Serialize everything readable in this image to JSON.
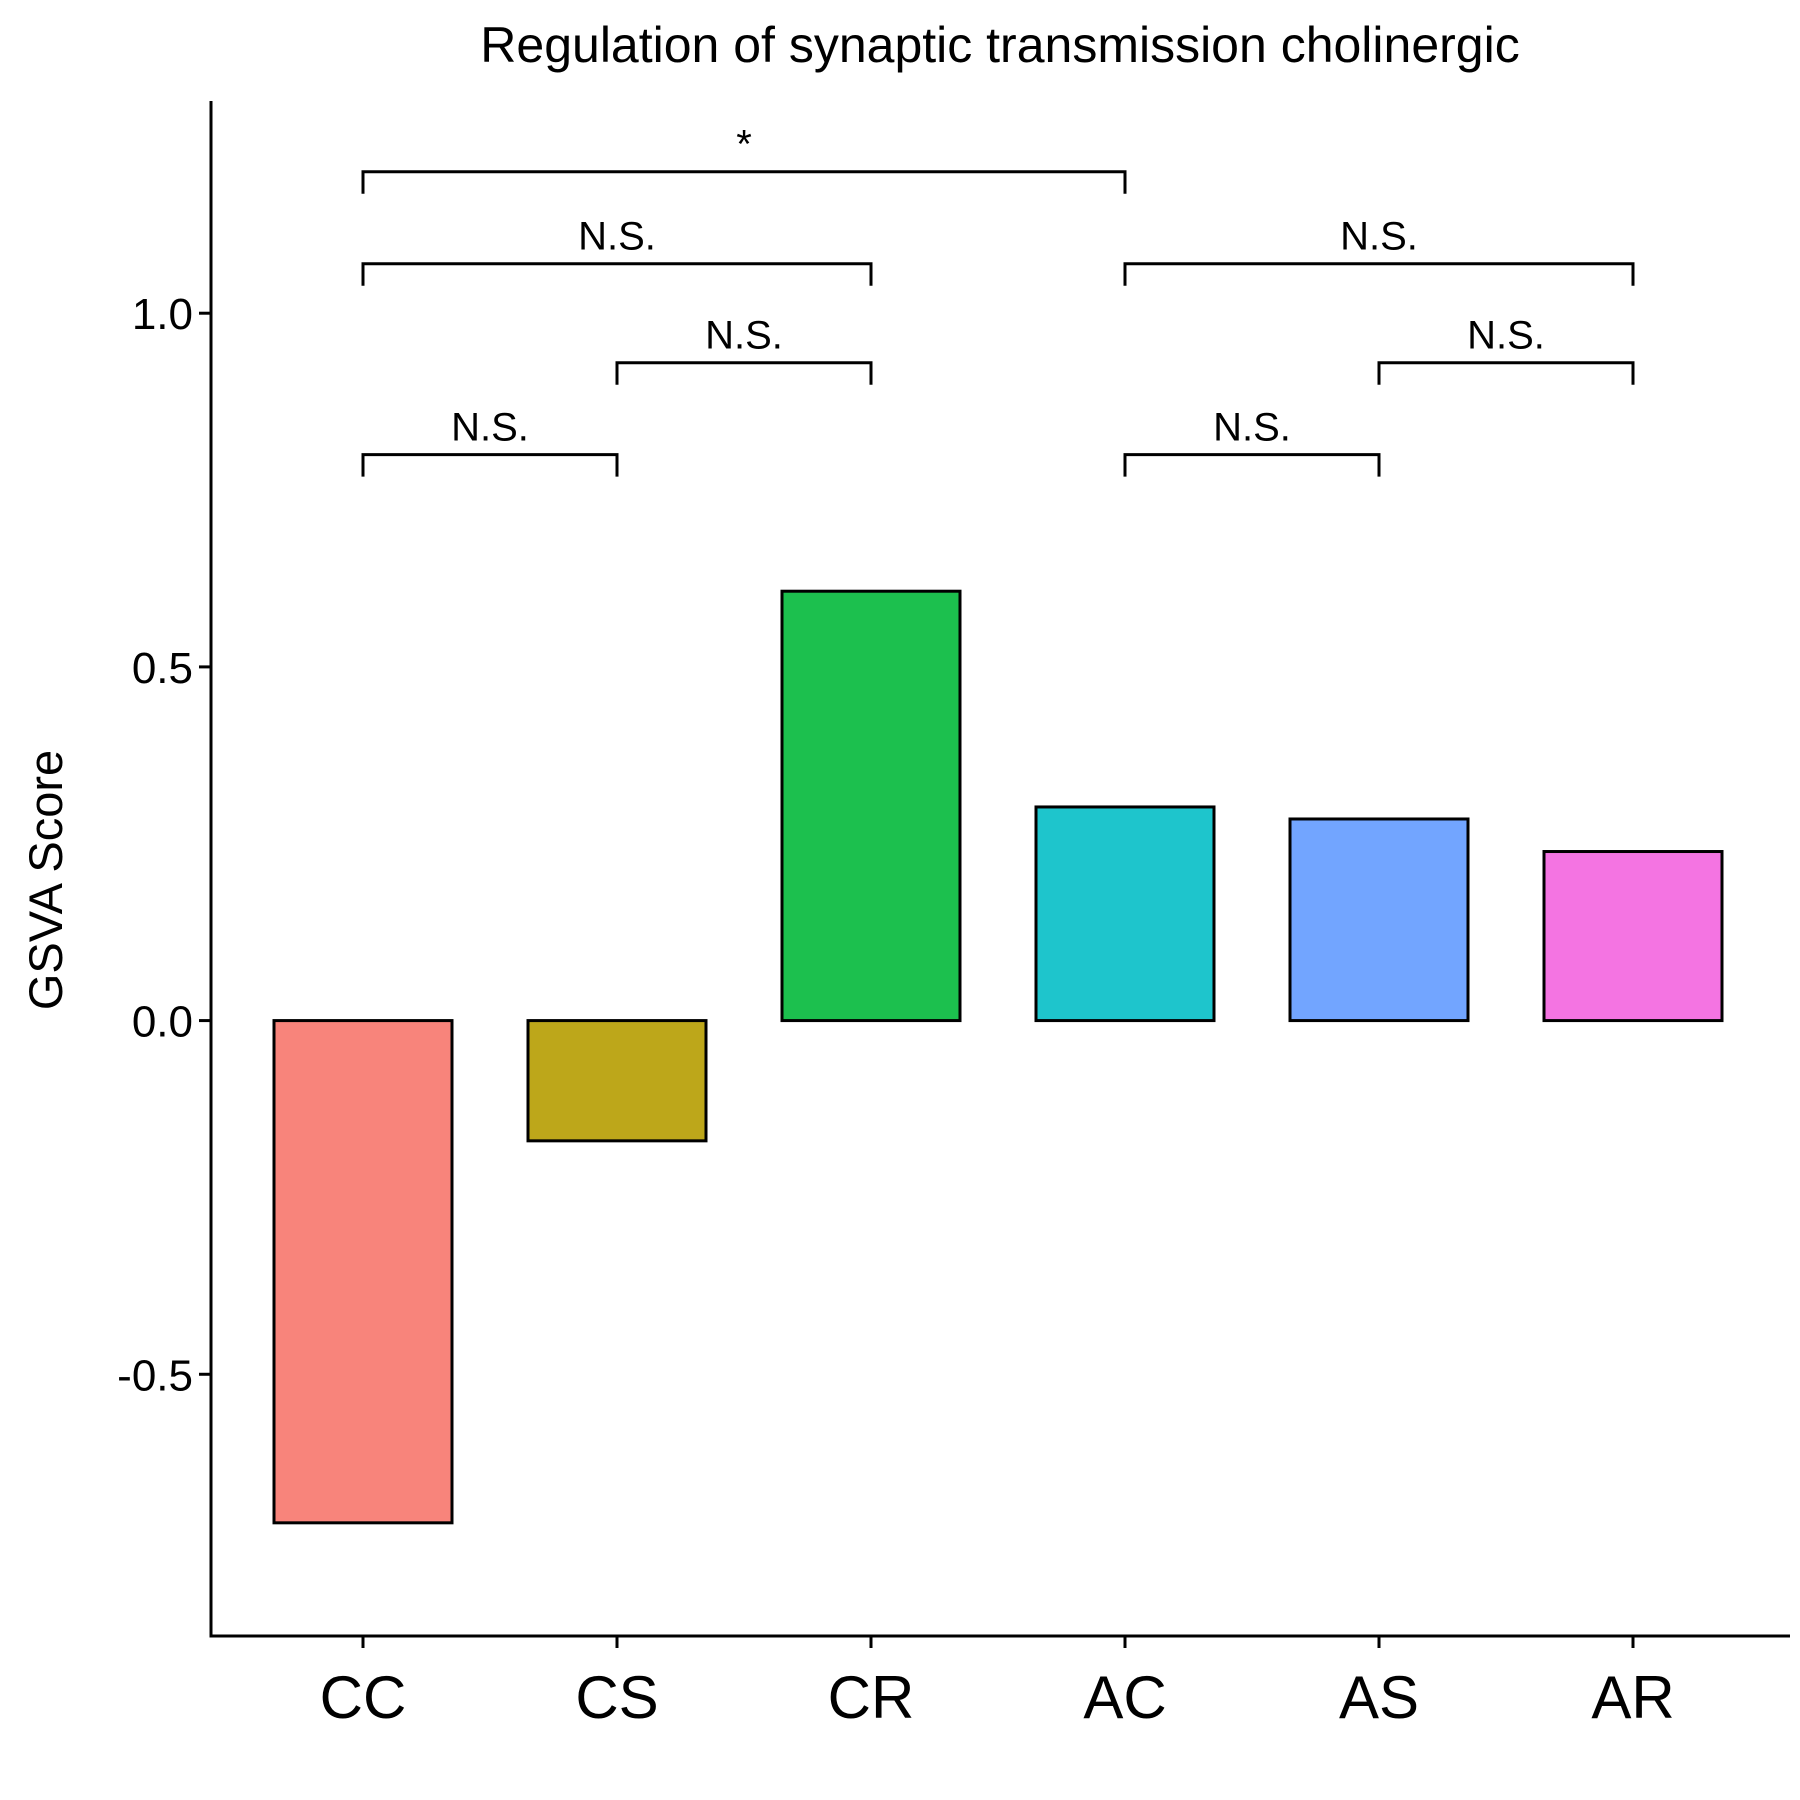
{
  "chart_data": {
    "type": "bar",
    "title": "Regulation of synaptic transmission cholinergic",
    "xlabel": "",
    "ylabel": "GSVA Score",
    "categories": [
      "CC",
      "CS",
      "CR",
      "AC",
      "AS",
      "AR"
    ],
    "values": [
      -0.71,
      -0.17,
      0.607,
      0.302,
      0.285,
      0.239
    ],
    "colors": [
      "#F8847B",
      "#BDA71A",
      "#1CC04E",
      "#1EC5CC",
      "#72A5FF",
      "#F474E2"
    ],
    "ylim": [
      -0.87,
      1.3
    ],
    "yticks": [
      {
        "value": -0.5,
        "label": "-0.5"
      },
      {
        "value": 0.0,
        "label": "0.0"
      },
      {
        "value": 0.5,
        "label": "0.5"
      },
      {
        "value": 1.0,
        "label": "1.0"
      }
    ],
    "grid": false,
    "legend": "none",
    "comparisons": [
      {
        "from": "CC",
        "to": "CS",
        "y": 0.8,
        "label": "N.S."
      },
      {
        "from": "CS",
        "to": "CR",
        "y": 0.93,
        "label": "N.S."
      },
      {
        "from": "CC",
        "to": "CR",
        "y": 1.07,
        "label": "N.S."
      },
      {
        "from": "CC",
        "to": "AC",
        "y": 1.2,
        "label": "*"
      },
      {
        "from": "AC",
        "to": "AS",
        "y": 0.8,
        "label": "N.S."
      },
      {
        "from": "AS",
        "to": "AR",
        "y": 0.93,
        "label": "N.S."
      },
      {
        "from": "AC",
        "to": "AR",
        "y": 1.07,
        "label": "N.S."
      }
    ]
  }
}
